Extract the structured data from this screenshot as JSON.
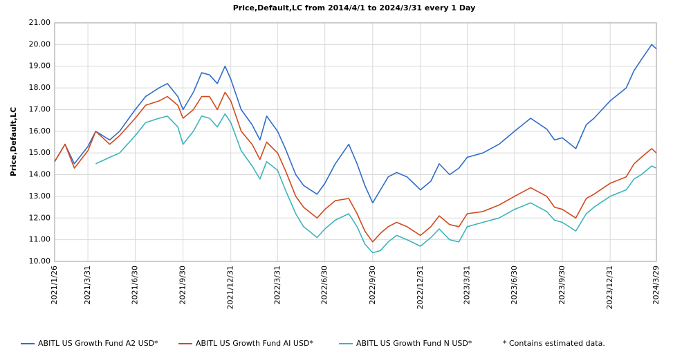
{
  "chart_data": {
    "type": "line",
    "title": "Price,Default,LC from 2014/4/1 to 2024/3/31 every 1 Day",
    "y_label": "Price,Default,LC",
    "note": "*  Contains estimated data.",
    "grid": true,
    "legend": "bottom",
    "xlim": [
      "2021/1/26",
      "2024/3/29"
    ],
    "xticks": [
      "2021/1/26",
      "2021/3/31",
      "2021/6/30",
      "2021/9/30",
      "2021/12/31",
      "2022/3/31",
      "2022/6/30",
      "2022/9/30",
      "2022/12/31",
      "2023/3/31",
      "2023/6/30",
      "2023/9/30",
      "2023/12/31",
      "2024/3/29"
    ],
    "ylim": [
      10,
      21
    ],
    "yticks": [
      {
        "value": 10,
        "label": "10.00"
      },
      {
        "value": 11,
        "label": "11.00"
      },
      {
        "value": 12,
        "label": "12.00"
      },
      {
        "value": 13,
        "label": "13.00"
      },
      {
        "value": 14,
        "label": "14.00"
      },
      {
        "value": 15,
        "label": "15.00"
      },
      {
        "value": 16,
        "label": "16.00"
      },
      {
        "value": 17,
        "label": "17.00"
      },
      {
        "value": 18,
        "label": "18.00"
      },
      {
        "value": 19,
        "label": "19.00"
      },
      {
        "value": 20,
        "label": "20.00"
      },
      {
        "value": 21,
        "label": "21.00"
      }
    ],
    "x": [
      "2021/1/26",
      "2021/2/15",
      "2021/3/5",
      "2021/3/31",
      "2021/4/15",
      "2021/5/12",
      "2021/5/31",
      "2021/6/30",
      "2021/7/20",
      "2021/8/15",
      "2021/8/31",
      "2021/9/20",
      "2021/9/30",
      "2021/10/20",
      "2021/11/5",
      "2021/11/20",
      "2021/12/5",
      "2021/12/20",
      "2021/12/31",
      "2022/1/20",
      "2022/2/10",
      "2022/2/25",
      "2022/3/10",
      "2022/3/31",
      "2022/4/15",
      "2022/5/5",
      "2022/5/20",
      "2022/6/15",
      "2022/6/30",
      "2022/7/20",
      "2022/8/15",
      "2022/8/31",
      "2022/9/15",
      "2022/9/30",
      "2022/10/15",
      "2022/10/30",
      "2022/11/15",
      "2022/12/5",
      "2022/12/31",
      "2023/1/20",
      "2023/2/5",
      "2023/2/25",
      "2023/3/15",
      "2023/3/31",
      "2023/4/30",
      "2023/5/31",
      "2023/6/30",
      "2023/7/31",
      "2023/8/31",
      "2023/9/15",
      "2023/9/30",
      "2023/10/26",
      "2023/11/15",
      "2023/11/30",
      "2023/12/31",
      "2024/1/31",
      "2024/2/15",
      "2024/2/29",
      "2024/3/20",
      "2024/3/29"
    ],
    "series": [
      {
        "name": "ABITL US Growth Fund A2 USD*",
        "color": "#2f6cc9",
        "values": [
          14.6,
          15.4,
          14.5,
          15.3,
          16.0,
          15.6,
          16.0,
          17.0,
          17.6,
          18.0,
          18.2,
          17.6,
          17.0,
          17.8,
          18.7,
          18.6,
          18.2,
          19.0,
          18.4,
          17.0,
          16.3,
          15.6,
          16.7,
          16.0,
          15.2,
          14.0,
          13.5,
          13.1,
          13.6,
          14.5,
          15.4,
          14.5,
          13.5,
          12.7,
          13.3,
          13.9,
          14.1,
          13.9,
          13.3,
          13.7,
          14.5,
          14.0,
          14.3,
          14.8,
          15.0,
          15.4,
          16.0,
          16.6,
          16.1,
          15.6,
          15.7,
          15.2,
          16.3,
          16.6,
          17.4,
          18.0,
          18.8,
          19.3,
          20.0,
          19.8
        ]
      },
      {
        "name": "ABITL US Growth Fund AI USD*",
        "color": "#d2491c",
        "values": [
          14.6,
          15.4,
          14.3,
          15.1,
          16.0,
          15.4,
          15.8,
          16.6,
          17.2,
          17.4,
          17.6,
          17.2,
          16.6,
          17.0,
          17.6,
          17.6,
          17.0,
          17.8,
          17.4,
          16.0,
          15.4,
          14.7,
          15.5,
          15.0,
          14.2,
          13.0,
          12.5,
          12.0,
          12.4,
          12.8,
          12.9,
          12.2,
          11.4,
          10.9,
          11.3,
          11.6,
          11.8,
          11.6,
          11.2,
          11.6,
          12.1,
          11.7,
          11.6,
          12.2,
          12.3,
          12.6,
          13.0,
          13.4,
          13.0,
          12.5,
          12.4,
          12.0,
          12.9,
          13.1,
          13.6,
          13.9,
          14.5,
          14.8,
          15.2,
          15.0
        ]
      },
      {
        "name": "ABITL US Growth Fund N USD*",
        "color": "#3cb4bc",
        "values": [
          null,
          null,
          null,
          null,
          14.5,
          14.8,
          15.0,
          15.8,
          16.4,
          16.6,
          16.7,
          16.2,
          15.4,
          16.0,
          16.7,
          16.6,
          16.2,
          16.8,
          16.4,
          15.1,
          14.4,
          13.8,
          14.6,
          14.2,
          13.3,
          12.2,
          11.6,
          11.1,
          11.5,
          11.9,
          12.2,
          11.6,
          10.8,
          10.4,
          10.5,
          10.9,
          11.2,
          11.0,
          10.7,
          11.1,
          11.5,
          11.0,
          10.9,
          11.6,
          11.8,
          12.0,
          12.4,
          12.7,
          12.3,
          11.9,
          11.8,
          11.4,
          12.2,
          12.5,
          13.0,
          13.3,
          13.8,
          14.0,
          14.4,
          14.3
        ]
      }
    ]
  }
}
